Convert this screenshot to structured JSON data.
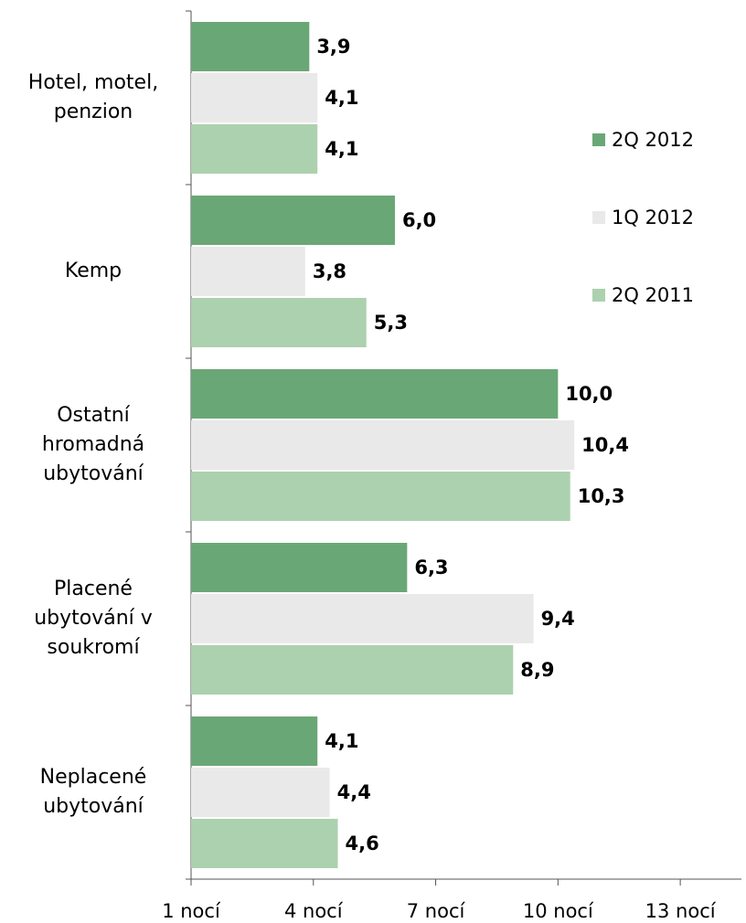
{
  "chart_data": {
    "type": "barh",
    "categories": [
      "Hotel, motel, penzion",
      "Kemp",
      "Ostatní hromadná ubytování",
      "Placené ubytování v soukromí",
      "Neplacené ubytování"
    ],
    "series": [
      {
        "name": "2Q 2012",
        "color": "#6aa776",
        "values": [
          3.9,
          6.0,
          10.0,
          6.3,
          4.1
        ],
        "value_labels": [
          "3,9",
          "6,0",
          "10,0",
          "6,3",
          "4,1"
        ]
      },
      {
        "name": "1Q 2012",
        "color": "#e9e9e9",
        "values": [
          4.1,
          3.8,
          10.4,
          9.4,
          4.4
        ],
        "value_labels": [
          "4,1",
          "3,8",
          "10,4",
          "9,4",
          "4,4"
        ]
      },
      {
        "name": "2Q 2011",
        "color": "#acd1ae",
        "values": [
          4.1,
          5.3,
          10.3,
          8.9,
          4.6
        ],
        "value_labels": [
          "4,1",
          "5,3",
          "10,3",
          "8,9",
          "4,6"
        ]
      }
    ],
    "xlim": [
      1,
      14.5
    ],
    "xticks": [
      {
        "value": 1,
        "label": "1 nocí"
      },
      {
        "value": 4,
        "label": "4 nocí"
      },
      {
        "value": 7,
        "label": "7 nocí"
      },
      {
        "value": 10,
        "label": "10 nocí"
      },
      {
        "value": 13,
        "label": "13 nocí"
      }
    ],
    "legend": "right"
  }
}
